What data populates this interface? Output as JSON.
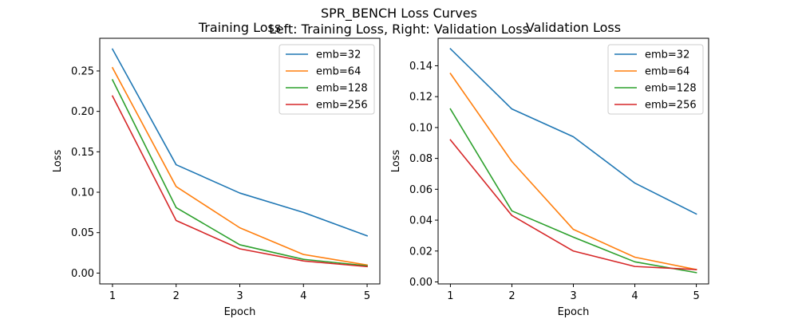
{
  "figure": {
    "title_line1": "SPR_BENCH Loss Curves",
    "title_line2": "Left: Training Loss, Right: Validation Loss"
  },
  "chart_data": [
    {
      "type": "line",
      "title": "Training Loss",
      "xlabel": "Epoch",
      "ylabel": "Loss",
      "x": [
        1,
        2,
        3,
        4,
        5
      ],
      "xticks": [
        1,
        2,
        3,
        4,
        5
      ],
      "xlim": [
        0.8,
        5.2
      ],
      "ylim": [
        -0.0134,
        0.2904
      ],
      "yticks": [
        0.0,
        0.05,
        0.1,
        0.15,
        0.2,
        0.25
      ],
      "ytick_labels": [
        "0.00",
        "0.05",
        "0.10",
        "0.15",
        "0.20",
        "0.25"
      ],
      "grid": false,
      "legend": "upper right",
      "series": [
        {
          "name": "emb=32",
          "color": "#1f77b4",
          "values": [
            0.277,
            0.134,
            0.099,
            0.075,
            0.046
          ]
        },
        {
          "name": "emb=64",
          "color": "#ff7f0e",
          "values": [
            0.254,
            0.107,
            0.056,
            0.023,
            0.01
          ]
        },
        {
          "name": "emb=128",
          "color": "#2ca02c",
          "values": [
            0.239,
            0.081,
            0.035,
            0.017,
            0.009
          ]
        },
        {
          "name": "emb=256",
          "color": "#d62728",
          "values": [
            0.219,
            0.065,
            0.03,
            0.015,
            0.008
          ]
        }
      ]
    },
    {
      "type": "line",
      "title": "Validation Loss",
      "xlabel": "Epoch",
      "ylabel": "Loss",
      "x": [
        1,
        2,
        3,
        4,
        5
      ],
      "xticks": [
        1,
        2,
        3,
        4,
        5
      ],
      "xlim": [
        0.8,
        5.2
      ],
      "ylim": [
        -0.0013,
        0.1578
      ],
      "yticks": [
        0.0,
        0.02,
        0.04,
        0.06,
        0.08,
        0.1,
        0.12,
        0.14
      ],
      "ytick_labels": [
        "0.00",
        "0.02",
        "0.04",
        "0.06",
        "0.08",
        "0.10",
        "0.12",
        "0.14"
      ],
      "grid": false,
      "legend": "upper right",
      "series": [
        {
          "name": "emb=32",
          "color": "#1f77b4",
          "values": [
            0.151,
            0.112,
            0.094,
            0.064,
            0.044
          ]
        },
        {
          "name": "emb=64",
          "color": "#ff7f0e",
          "values": [
            0.135,
            0.078,
            0.034,
            0.016,
            0.008
          ]
        },
        {
          "name": "emb=128",
          "color": "#2ca02c",
          "values": [
            0.112,
            0.046,
            0.029,
            0.013,
            0.006
          ]
        },
        {
          "name": "emb=256",
          "color": "#d62728",
          "values": [
            0.092,
            0.043,
            0.02,
            0.01,
            0.008
          ]
        }
      ]
    }
  ]
}
